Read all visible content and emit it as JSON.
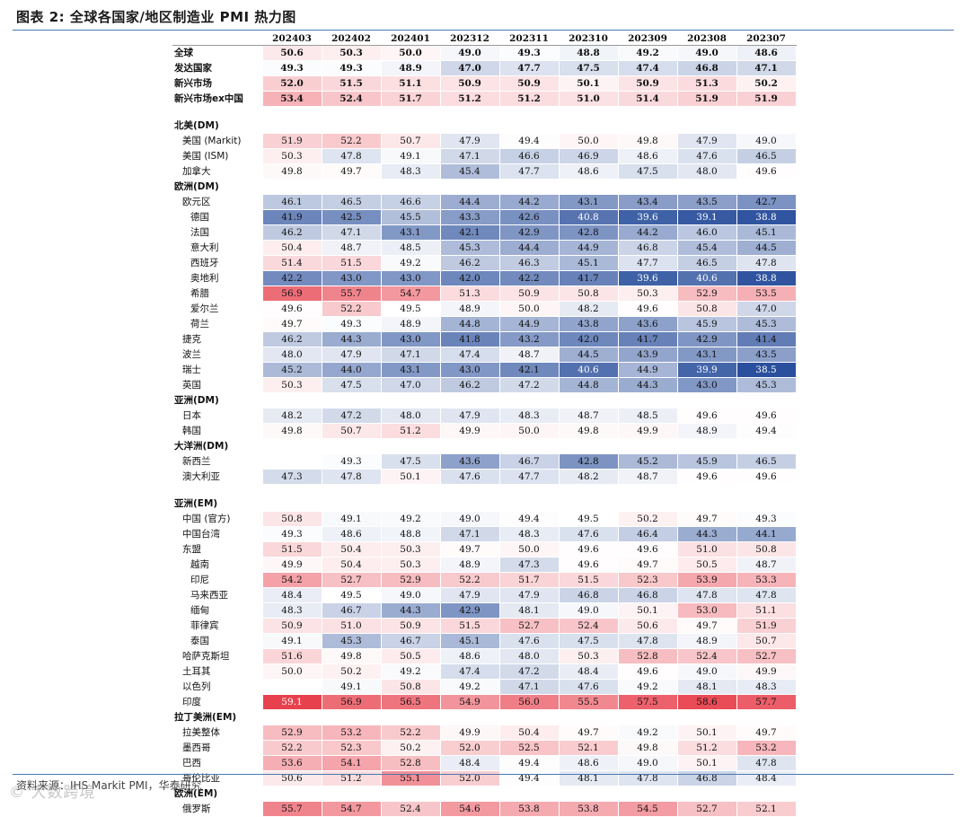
{
  "title": "图表 2:    全球各国家/地区制造业 PMI 热力图",
  "source": "资料来源：IHS Markit PMI，华泰研究",
  "watermark": "© 大数跨境",
  "chart_data": {
    "type": "heatmap",
    "columns": [
      "202403",
      "202402",
      "202401",
      "202312",
      "202311",
      "202310",
      "202309",
      "202308",
      "202307"
    ],
    "rows": [
      {
        "label": "全球",
        "indent": 0,
        "bold": true,
        "values": [
          50.6,
          50.3,
          50.0,
          49.0,
          49.3,
          48.8,
          49.2,
          49.0,
          48.6
        ]
      },
      {
        "label": "发达国家",
        "indent": 0,
        "bold": true,
        "values": [
          49.3,
          49.3,
          48.9,
          47.0,
          47.7,
          47.5,
          47.4,
          46.8,
          47.1
        ]
      },
      {
        "label": "新兴市场",
        "indent": 0,
        "bold": true,
        "values": [
          52.0,
          51.5,
          51.1,
          50.9,
          50.9,
          50.1,
          50.9,
          51.3,
          50.2
        ]
      },
      {
        "label": "新兴市场ex中国",
        "indent": 0,
        "bold": true,
        "values": [
          53.4,
          52.4,
          51.7,
          51.2,
          51.2,
          51.0,
          51.4,
          51.9,
          51.9
        ]
      },
      {
        "spacer": true
      },
      {
        "label": "北美(DM)",
        "indent": 0,
        "bold": true,
        "header": true
      },
      {
        "label": "美国 (Markit)",
        "indent": 1,
        "values": [
          51.9,
          52.2,
          50.7,
          47.9,
          49.4,
          50.0,
          49.8,
          47.9,
          49.0
        ]
      },
      {
        "label": "美国 (ISM)",
        "indent": 1,
        "values": [
          50.3,
          47.8,
          49.1,
          47.1,
          46.6,
          46.9,
          48.6,
          47.6,
          46.5
        ]
      },
      {
        "label": "加拿大",
        "indent": 1,
        "values": [
          49.8,
          49.7,
          48.3,
          45.4,
          47.7,
          48.6,
          47.5,
          48.0,
          49.6
        ]
      },
      {
        "label": "欧洲(DM)",
        "indent": 0,
        "bold": true,
        "header": true
      },
      {
        "label": "欧元区",
        "indent": 1,
        "values": [
          46.1,
          46.5,
          46.6,
          44.4,
          44.2,
          43.1,
          43.4,
          43.5,
          42.7
        ]
      },
      {
        "label": "德国",
        "indent": 2,
        "values": [
          41.9,
          42.5,
          45.5,
          43.3,
          42.6,
          40.8,
          39.6,
          39.1,
          38.8
        ]
      },
      {
        "label": "法国",
        "indent": 2,
        "values": [
          46.2,
          47.1,
          43.1,
          42.1,
          42.9,
          42.8,
          44.2,
          46.0,
          45.1
        ]
      },
      {
        "label": "意大利",
        "indent": 2,
        "values": [
          50.4,
          48.7,
          48.5,
          45.3,
          44.4,
          44.9,
          46.8,
          45.4,
          44.5
        ]
      },
      {
        "label": "西班牙",
        "indent": 2,
        "values": [
          51.4,
          51.5,
          49.2,
          46.2,
          46.3,
          45.1,
          47.7,
          46.5,
          47.8
        ]
      },
      {
        "label": "奥地利",
        "indent": 2,
        "values": [
          42.2,
          43.0,
          43.0,
          42.0,
          42.2,
          41.7,
          39.6,
          40.6,
          38.8
        ]
      },
      {
        "label": "希腊",
        "indent": 2,
        "values": [
          56.9,
          55.7,
          54.7,
          51.3,
          50.9,
          50.8,
          50.3,
          52.9,
          53.5
        ]
      },
      {
        "label": "爱尔兰",
        "indent": 2,
        "values": [
          49.6,
          52.2,
          49.5,
          48.9,
          50.0,
          48.2,
          49.6,
          50.8,
          47.0
        ]
      },
      {
        "label": "荷兰",
        "indent": 2,
        "values": [
          49.7,
          49.3,
          48.9,
          44.8,
          44.9,
          43.8,
          43.6,
          45.9,
          45.3
        ]
      },
      {
        "label": "捷克",
        "indent": 1,
        "values": [
          46.2,
          44.3,
          43.0,
          41.8,
          43.2,
          42.0,
          41.7,
          42.9,
          41.4
        ]
      },
      {
        "label": "波兰",
        "indent": 1,
        "values": [
          48.0,
          47.9,
          47.1,
          47.4,
          48.7,
          44.5,
          43.9,
          43.1,
          43.5
        ]
      },
      {
        "label": "瑞士",
        "indent": 1,
        "values": [
          45.2,
          44.0,
          43.1,
          43.0,
          42.1,
          40.6,
          44.9,
          39.9,
          38.5
        ]
      },
      {
        "label": "英国",
        "indent": 1,
        "values": [
          50.3,
          47.5,
          47.0,
          46.2,
          47.2,
          44.8,
          44.3,
          43.0,
          45.3
        ]
      },
      {
        "label": "亚洲(DM)",
        "indent": 0,
        "bold": true,
        "header": true
      },
      {
        "label": "日本",
        "indent": 1,
        "values": [
          48.2,
          47.2,
          48.0,
          47.9,
          48.3,
          48.7,
          48.5,
          49.6,
          49.6
        ]
      },
      {
        "label": "韩国",
        "indent": 1,
        "values": [
          49.8,
          50.7,
          51.2,
          49.9,
          50.0,
          49.8,
          49.9,
          48.9,
          49.4
        ]
      },
      {
        "label": "大洋洲(DM)",
        "indent": 0,
        "bold": true,
        "header": true
      },
      {
        "label": "新西兰",
        "indent": 1,
        "values": [
          null,
          49.3,
          47.5,
          43.6,
          46.7,
          42.8,
          45.2,
          45.9,
          46.5
        ]
      },
      {
        "label": "澳大利亚",
        "indent": 1,
        "values": [
          47.3,
          47.8,
          50.1,
          47.6,
          47.7,
          48.2,
          48.7,
          49.6,
          49.6
        ]
      },
      {
        "spacer": true
      },
      {
        "label": "亚洲(EM)",
        "indent": 0,
        "bold": true,
        "header": true
      },
      {
        "label": "中国 (官方)",
        "indent": 1,
        "values": [
          50.8,
          49.1,
          49.2,
          49.0,
          49.4,
          49.5,
          50.2,
          49.7,
          49.3
        ]
      },
      {
        "label": "中国台湾",
        "indent": 1,
        "values": [
          49.3,
          48.6,
          48.8,
          47.1,
          48.3,
          47.6,
          46.4,
          44.3,
          44.1
        ]
      },
      {
        "label": "东盟",
        "indent": 1,
        "values": [
          51.5,
          50.4,
          50.3,
          49.7,
          50.0,
          49.6,
          49.6,
          51.0,
          50.8
        ]
      },
      {
        "label": "越南",
        "indent": 2,
        "values": [
          49.9,
          50.4,
          50.3,
          48.9,
          47.3,
          49.6,
          49.7,
          50.5,
          48.7
        ]
      },
      {
        "label": "印尼",
        "indent": 2,
        "values": [
          54.2,
          52.7,
          52.9,
          52.2,
          51.7,
          51.5,
          52.3,
          53.9,
          53.3
        ]
      },
      {
        "label": "马来西亚",
        "indent": 2,
        "values": [
          48.4,
          49.5,
          49.0,
          47.9,
          47.9,
          46.8,
          46.8,
          47.8,
          47.8
        ]
      },
      {
        "label": "缅甸",
        "indent": 2,
        "values": [
          48.3,
          46.7,
          44.3,
          42.9,
          48.1,
          49.0,
          50.1,
          53.0,
          51.1
        ]
      },
      {
        "label": "菲律宾",
        "indent": 2,
        "values": [
          50.9,
          51.0,
          50.9,
          51.5,
          52.7,
          52.4,
          50.6,
          49.7,
          51.9
        ]
      },
      {
        "label": "泰国",
        "indent": 2,
        "values": [
          49.1,
          45.3,
          46.7,
          45.1,
          47.6,
          47.5,
          47.8,
          48.9,
          50.7
        ]
      },
      {
        "label": "哈萨克斯坦",
        "indent": 1,
        "values": [
          51.6,
          49.8,
          50.5,
          48.6,
          48.0,
          50.3,
          52.8,
          52.4,
          52.7
        ]
      },
      {
        "label": "土耳其",
        "indent": 1,
        "values": [
          50.0,
          50.2,
          49.2,
          47.4,
          47.2,
          48.4,
          49.6,
          49.0,
          49.9
        ]
      },
      {
        "label": "以色列",
        "indent": 1,
        "values": [
          null,
          49.1,
          50.8,
          49.2,
          47.1,
          47.6,
          49.2,
          48.1,
          48.3
        ]
      },
      {
        "label": "印度",
        "indent": 1,
        "values": [
          59.1,
          56.9,
          56.5,
          54.9,
          56.0,
          55.5,
          57.5,
          58.6,
          57.7
        ]
      },
      {
        "label": "拉丁美洲(EM)",
        "indent": 0,
        "bold": true,
        "header": true
      },
      {
        "label": "拉美整体",
        "indent": 1,
        "values": [
          52.9,
          53.2,
          52.2,
          49.9,
          50.4,
          49.7,
          49.2,
          50.1,
          49.7
        ]
      },
      {
        "label": "墨西哥",
        "indent": 1,
        "values": [
          52.2,
          52.3,
          50.2,
          52.0,
          52.5,
          52.1,
          49.8,
          51.2,
          53.2
        ]
      },
      {
        "label": "巴西",
        "indent": 1,
        "values": [
          53.6,
          54.1,
          52.8,
          48.4,
          49.4,
          48.6,
          49.0,
          50.1,
          47.8
        ]
      },
      {
        "label": "哥伦比亚",
        "indent": 1,
        "values": [
          50.6,
          51.2,
          55.1,
          52.0,
          49.4,
          48.1,
          47.8,
          46.8,
          48.4
        ]
      },
      {
        "label": "欧洲(EM)",
        "indent": 0,
        "bold": true,
        "header": true
      },
      {
        "label": "俄罗斯",
        "indent": 1,
        "values": [
          55.7,
          54.7,
          52.4,
          54.6,
          53.8,
          53.8,
          54.5,
          52.7,
          52.1
        ]
      }
    ],
    "color_scale": {
      "low": "#2a4f9c",
      "mid": "#ffffff",
      "high": "#e8414e",
      "low_value": 38.5,
      "mid_value": 49.5,
      "high_value": 59.1
    }
  }
}
